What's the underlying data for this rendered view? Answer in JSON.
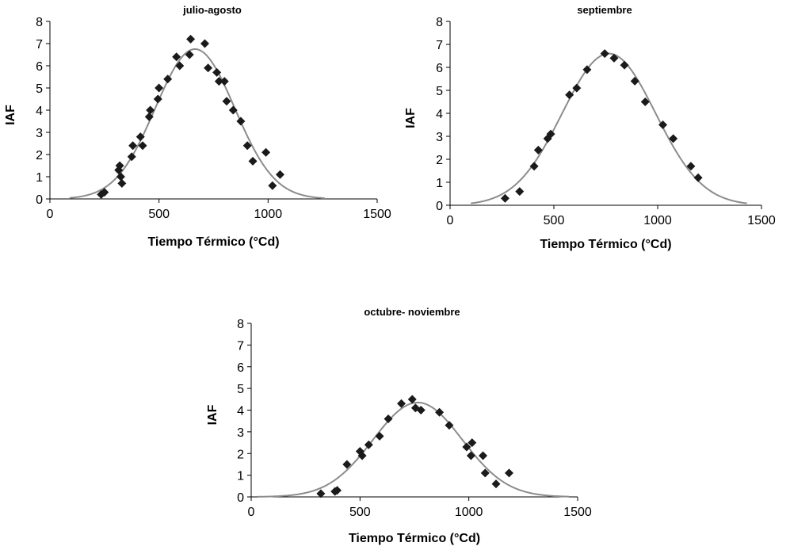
{
  "chart_data": [
    {
      "type": "scatter",
      "title": "julio-agosto",
      "xlabel": "Tiempo Térmico (°Cd)",
      "ylabel": "IAF",
      "xlim": [
        0,
        1500
      ],
      "ylim": [
        0,
        8
      ],
      "xticks": [
        0,
        500,
        1000,
        1500
      ],
      "yticks": [
        0,
        1,
        2,
        3,
        4,
        5,
        6,
        7,
        8
      ],
      "grid": false,
      "colors": {
        "points": "#1a1a1a",
        "curve": "#8c8c8c"
      },
      "points": [
        {
          "x": 235,
          "y": 0.2
        },
        {
          "x": 250,
          "y": 0.3
        },
        {
          "x": 315,
          "y": 1.3
        },
        {
          "x": 320,
          "y": 1.5
        },
        {
          "x": 325,
          "y": 1.0
        },
        {
          "x": 330,
          "y": 0.7
        },
        {
          "x": 375,
          "y": 1.9
        },
        {
          "x": 380,
          "y": 2.4
        },
        {
          "x": 415,
          "y": 2.8
        },
        {
          "x": 425,
          "y": 2.4
        },
        {
          "x": 455,
          "y": 3.7
        },
        {
          "x": 460,
          "y": 4.0
        },
        {
          "x": 495,
          "y": 4.5
        },
        {
          "x": 500,
          "y": 5.0
        },
        {
          "x": 540,
          "y": 5.4
        },
        {
          "x": 580,
          "y": 6.4
        },
        {
          "x": 595,
          "y": 6.0
        },
        {
          "x": 640,
          "y": 6.5
        },
        {
          "x": 645,
          "y": 7.2
        },
        {
          "x": 710,
          "y": 7.0
        },
        {
          "x": 725,
          "y": 5.9
        },
        {
          "x": 765,
          "y": 5.7
        },
        {
          "x": 775,
          "y": 5.3
        },
        {
          "x": 800,
          "y": 5.3
        },
        {
          "x": 810,
          "y": 4.4
        },
        {
          "x": 840,
          "y": 4.0
        },
        {
          "x": 875,
          "y": 3.5
        },
        {
          "x": 905,
          "y": 2.4
        },
        {
          "x": 930,
          "y": 1.7
        },
        {
          "x": 990,
          "y": 2.1
        },
        {
          "x": 1020,
          "y": 0.6
        },
        {
          "x": 1055,
          "y": 1.1
        }
      ],
      "fit_curve": {
        "type": "gaussian",
        "peak_y": 6.75,
        "peak_x": 665,
        "sd": 182,
        "x_range": [
          90,
          1260
        ]
      }
    },
    {
      "type": "scatter",
      "title": "septiembre",
      "xlabel": "Tiempo Térmico (°Cd)",
      "ylabel": "IAF",
      "xlim": [
        0,
        1500
      ],
      "ylim": [
        0,
        8
      ],
      "xticks": [
        0,
        500,
        1000,
        1500
      ],
      "yticks": [
        0,
        1,
        2,
        3,
        4,
        5,
        6,
        7,
        8
      ],
      "grid": false,
      "colors": {
        "points": "#1a1a1a",
        "curve": "#8c8c8c"
      },
      "points": [
        {
          "x": 265,
          "y": 0.3
        },
        {
          "x": 335,
          "y": 0.6
        },
        {
          "x": 405,
          "y": 1.7
        },
        {
          "x": 425,
          "y": 2.4
        },
        {
          "x": 470,
          "y": 2.9
        },
        {
          "x": 485,
          "y": 3.1
        },
        {
          "x": 575,
          "y": 4.8
        },
        {
          "x": 610,
          "y": 5.1
        },
        {
          "x": 660,
          "y": 5.9
        },
        {
          "x": 745,
          "y": 6.6
        },
        {
          "x": 790,
          "y": 6.4
        },
        {
          "x": 840,
          "y": 6.1
        },
        {
          "x": 890,
          "y": 5.4
        },
        {
          "x": 940,
          "y": 4.5
        },
        {
          "x": 1025,
          "y": 3.5
        },
        {
          "x": 1075,
          "y": 2.9
        },
        {
          "x": 1160,
          "y": 1.7
        },
        {
          "x": 1195,
          "y": 1.2
        }
      ],
      "fit_curve": {
        "type": "gaussian",
        "peak_y": 6.6,
        "peak_x": 765,
        "sd": 225,
        "x_range": [
          100,
          1430
        ]
      }
    },
    {
      "type": "scatter",
      "title": "octubre- noviembre",
      "xlabel": "Tiempo Térmico (°Cd)",
      "ylabel": "IAF",
      "xlim": [
        0,
        1500
      ],
      "ylim": [
        0,
        8
      ],
      "xticks": [
        0,
        500,
        1000,
        1500
      ],
      "yticks": [
        0,
        1,
        2,
        3,
        4,
        5,
        6,
        7,
        8
      ],
      "grid": false,
      "colors": {
        "points": "#1a1a1a",
        "curve": "#8c8c8c"
      },
      "points": [
        {
          "x": 320,
          "y": 0.15
        },
        {
          "x": 385,
          "y": 0.25
        },
        {
          "x": 395,
          "y": 0.3
        },
        {
          "x": 440,
          "y": 1.5
        },
        {
          "x": 500,
          "y": 2.1
        },
        {
          "x": 510,
          "y": 1.9
        },
        {
          "x": 540,
          "y": 2.4
        },
        {
          "x": 590,
          "y": 2.8
        },
        {
          "x": 630,
          "y": 3.6
        },
        {
          "x": 690,
          "y": 4.3
        },
        {
          "x": 740,
          "y": 4.5
        },
        {
          "x": 755,
          "y": 4.1
        },
        {
          "x": 780,
          "y": 4.0
        },
        {
          "x": 865,
          "y": 3.9
        },
        {
          "x": 910,
          "y": 3.3
        },
        {
          "x": 990,
          "y": 2.3
        },
        {
          "x": 1010,
          "y": 1.9
        },
        {
          "x": 1015,
          "y": 2.5
        },
        {
          "x": 1065,
          "y": 1.9
        },
        {
          "x": 1075,
          "y": 1.1
        },
        {
          "x": 1125,
          "y": 0.6
        },
        {
          "x": 1185,
          "y": 1.1
        }
      ],
      "fit_curve": {
        "type": "gaussian",
        "peak_y": 4.35,
        "peak_x": 765,
        "sd": 205,
        "x_range": [
          30,
          1460
        ]
      }
    }
  ]
}
